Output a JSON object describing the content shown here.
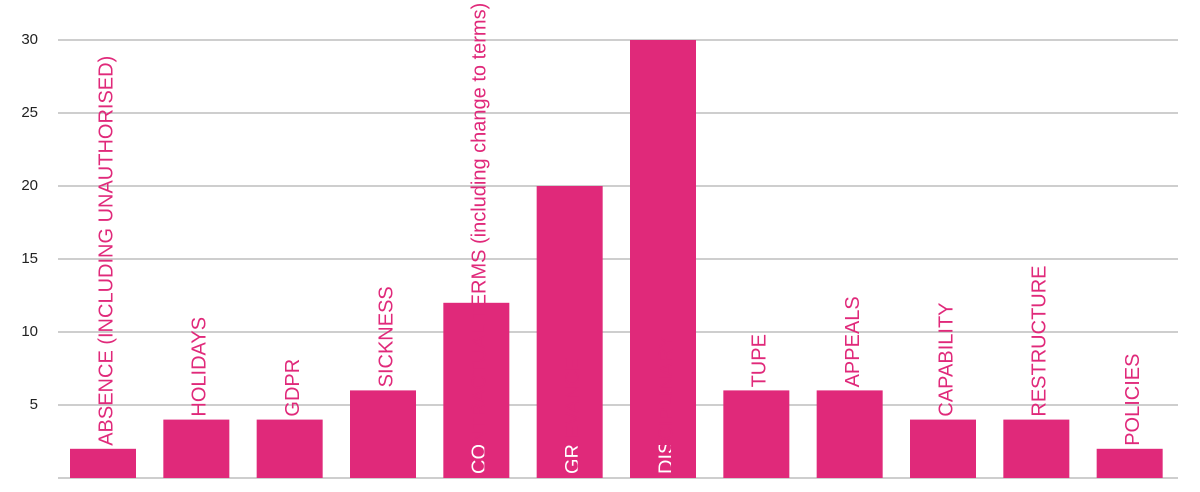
{
  "chart_data": {
    "type": "bar",
    "categories": [
      "ABSENCE (INCLUDING UNAUTHORISED)",
      "HOLIDAYS",
      "GDPR",
      "SICKNESS",
      "CONTRACTUAL TERMS (including change to terms)",
      "GRIEVANCE",
      "DISCIPLINARY",
      "TUPE",
      "APPEALS",
      "CAPABILITY",
      "RESTRUCTURE",
      "POLICIES"
    ],
    "values": [
      2,
      4,
      4,
      6,
      12,
      20,
      30,
      6,
      6,
      4,
      4,
      2
    ],
    "color": "#e0297a",
    "ylim": [
      0,
      30
    ],
    "yticks": [
      5,
      10,
      15,
      20,
      25,
      30
    ],
    "grid": true
  }
}
